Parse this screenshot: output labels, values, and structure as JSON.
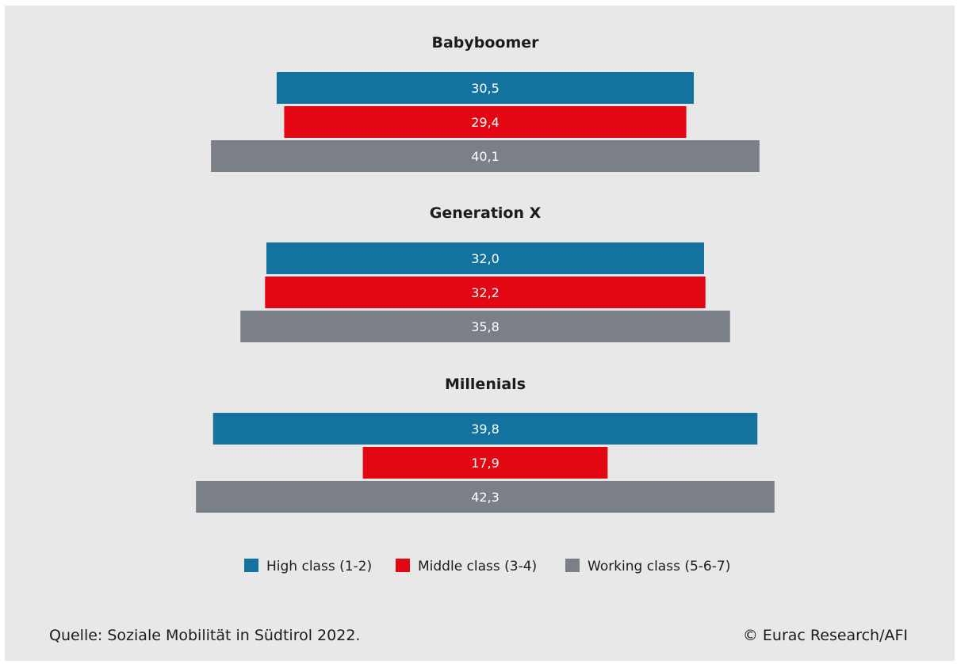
{
  "chart_data": {
    "type": "bar",
    "orientation": "horizontal-centered",
    "groups": [
      {
        "title": "Babyboomer",
        "values": [
          30.5,
          29.4,
          40.1
        ],
        "labels": [
          "30,5",
          "29,4",
          "40,1"
        ]
      },
      {
        "title": "Generation X",
        "values": [
          32.0,
          32.2,
          35.8
        ],
        "labels": [
          "32,0",
          "32,2",
          "35,8"
        ]
      },
      {
        "title": "Millenials",
        "values": [
          39.8,
          17.9,
          42.3
        ],
        "labels": [
          "39,8",
          "17,9",
          "42,3"
        ]
      }
    ],
    "series": [
      {
        "name": "High class (1-2)",
        "color": "#13729e"
      },
      {
        "name": "Middle class (3-4)",
        "color": "#e30613"
      },
      {
        "name": "Working class (5-6-7)",
        "color": "#7b8088"
      }
    ],
    "legend_position": "bottom-center",
    "grid": false
  },
  "footer": {
    "source": "Quelle: Soziale Mobilität in Südtirol 2022.",
    "copyright": "© Eurac Research/AFI"
  }
}
